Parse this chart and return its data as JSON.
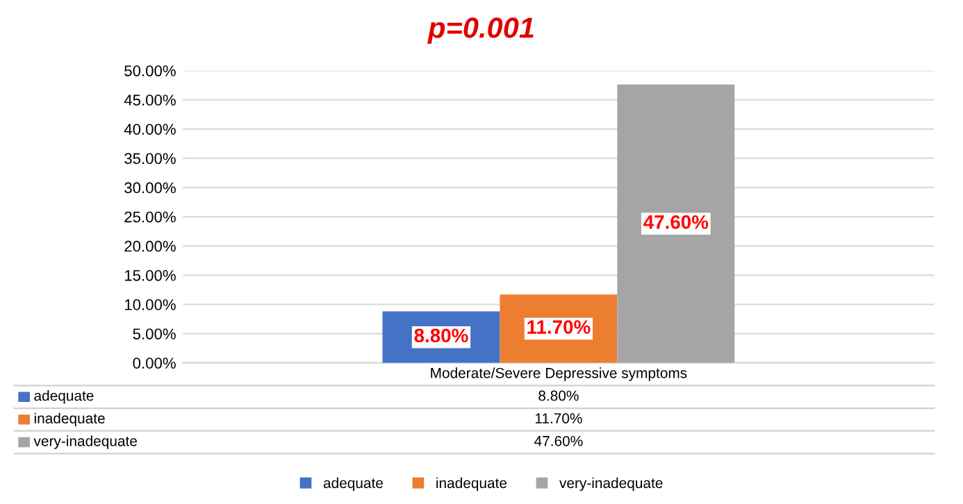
{
  "chart_data": {
    "type": "bar",
    "title": "p=0.001",
    "categories": [
      "Moderate/Severe Depressive symptoms"
    ],
    "series": [
      {
        "name": "adequate",
        "color": "#4472c4",
        "values": [
          8.8
        ],
        "value_labels": [
          "8.80%"
        ]
      },
      {
        "name": "inadequate",
        "color": "#ed7d31",
        "values": [
          11.7
        ],
        "value_labels": [
          "11.70%"
        ]
      },
      {
        "name": "very-inadequate",
        "color": "#a5a5a5",
        "values": [
          47.6
        ],
        "value_labels": [
          "47.60%"
        ]
      }
    ],
    "ylim": [
      0,
      50
    ],
    "yticks": [
      {
        "value": 0,
        "label": "0.00%"
      },
      {
        "value": 5,
        "label": "5.00%"
      },
      {
        "value": 10,
        "label": "10.00%"
      },
      {
        "value": 15,
        "label": "15.00%"
      },
      {
        "value": 20,
        "label": "20.00%"
      },
      {
        "value": 25,
        "label": "25.00%"
      },
      {
        "value": 30,
        "label": "30.00%"
      },
      {
        "value": 35,
        "label": "35.00%"
      },
      {
        "value": 40,
        "label": "40.00%"
      },
      {
        "value": 45,
        "label": "45.00%"
      },
      {
        "value": 50,
        "label": "50.00%"
      }
    ],
    "grid": "y",
    "legend": "bottom"
  }
}
